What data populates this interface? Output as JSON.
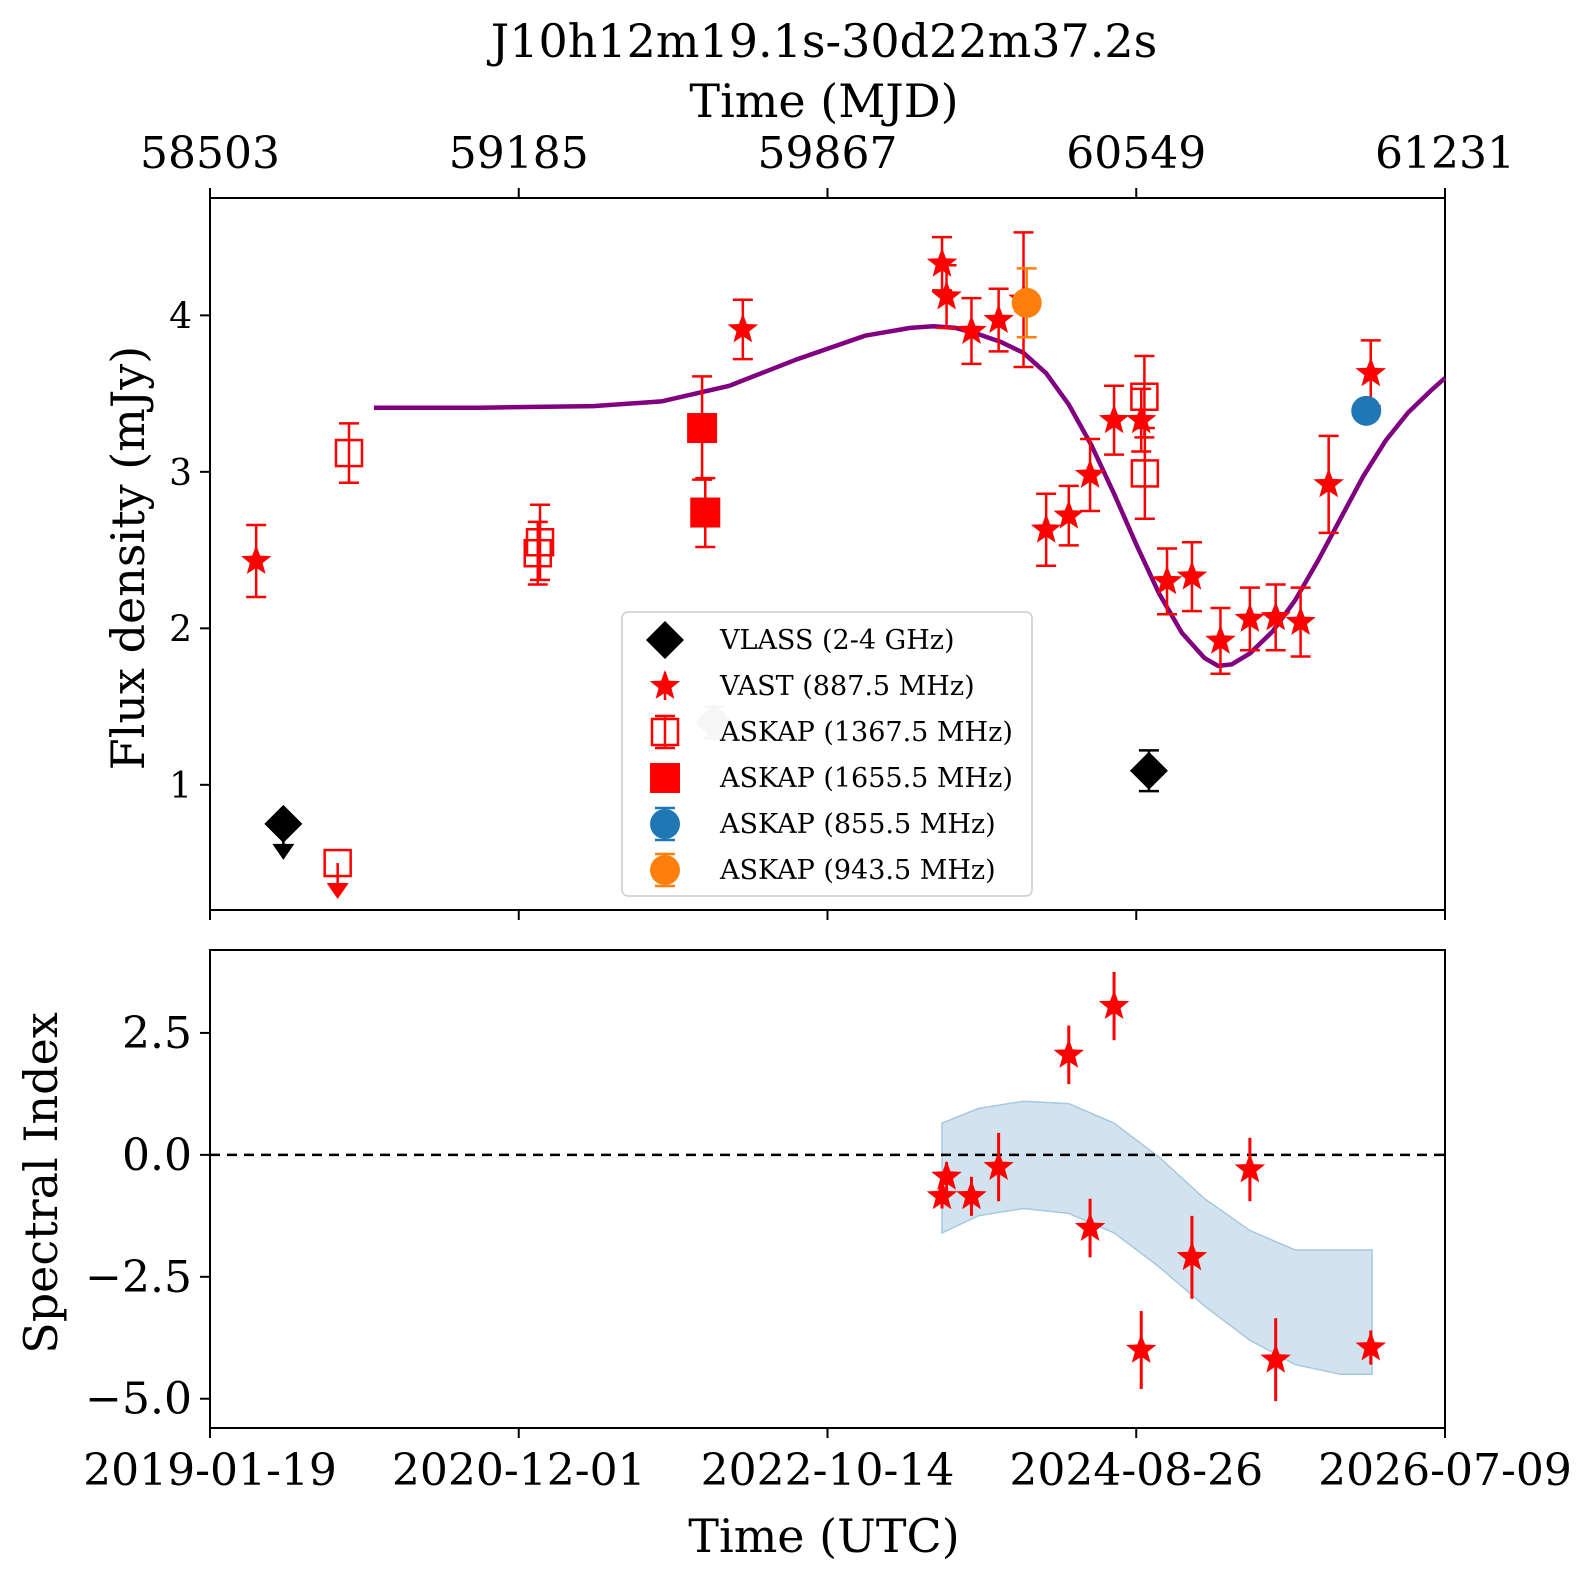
{
  "title": "J10h12m19.1s-30d22m37.2s",
  "colors": {
    "vlass": "#000000",
    "vast": "#ff0000",
    "askap_1367": "#ff0000",
    "askap_1655": "#ff0000",
    "askap_855": "#1f77b4",
    "askap_943": "#ff7f0e",
    "model": "#800080",
    "band": "#a6c8e0",
    "vlass_epoch1": "#c0c0c0"
  },
  "chart_data": [
    {
      "type": "scatter",
      "panel": "flux_density",
      "xlabel": "Time (UTC)",
      "ylabel": "Flux density (mJy)",
      "top_xlabel": "Time (MJD)",
      "top_ticks": [
        "58503",
        "59185",
        "59867",
        "60549",
        "61231"
      ],
      "x_tick_labels": [
        "2019-01-19",
        "2020-12-01",
        "2022-10-14",
        "2024-08-26",
        "2026-07-09"
      ],
      "xlim_mjd": [
        58503,
        61231
      ],
      "ylim": [
        0.2,
        4.75
      ],
      "y_ticks": [
        "1",
        "2",
        "3",
        "4"
      ],
      "grid": false,
      "legend_placement": "center",
      "legend": [
        {
          "label": "VLASS (2-4 GHz)",
          "marker": "diamond",
          "color": "#000000"
        },
        {
          "label": "VAST (887.5 MHz)",
          "marker": "star",
          "color": "#ff0000"
        },
        {
          "label": "ASKAP (1367.5 MHz)",
          "marker": "open-square",
          "color": "#ff0000"
        },
        {
          "label": "ASKAP (1655.5 MHz)",
          "marker": "square",
          "color": "#ff0000"
        },
        {
          "label": "ASKAP (855.5 MHz)",
          "marker": "circle",
          "color": "#1f77b4"
        },
        {
          "label": "ASKAP (943.5 MHz)",
          "marker": "circle",
          "color": "#ff7f0e"
        }
      ],
      "series": [
        {
          "name": "VLASS (2-4 GHz)",
          "marker": "diamond",
          "points": [
            {
              "x": 58665,
              "y": 0.75,
              "upper_limit": true
            },
            {
              "x": 60577,
              "y": 1.09,
              "err": 0.13
            }
          ],
          "extra_points": [
            {
              "x": 59617,
              "y": 1.4,
              "err": 0.1,
              "color": "#c0c0c0"
            }
          ]
        },
        {
          "name": "VAST (887.5 MHz)",
          "marker": "star",
          "points": [
            {
              "x": 58605,
              "y": 2.43,
              "err": 0.23
            },
            {
              "x": 59680,
              "y": 3.91,
              "err": 0.19
            },
            {
              "x": 60120,
              "y": 4.33,
              "err": 0.17
            },
            {
              "x": 60130,
              "y": 4.12,
              "err": 0.2
            },
            {
              "x": 60185,
              "y": 3.9,
              "err": 0.21
            },
            {
              "x": 60245,
              "y": 3.97,
              "err": 0.2
            },
            {
              "x": 60300,
              "y": 4.1,
              "err": 0.43
            },
            {
              "x": 60350,
              "y": 2.63,
              "err": 0.23
            },
            {
              "x": 60400,
              "y": 2.72,
              "err": 0.19
            },
            {
              "x": 60447,
              "y": 2.98,
              "err": 0.23
            },
            {
              "x": 60500,
              "y": 3.33,
              "err": 0.22
            },
            {
              "x": 60560,
              "y": 3.33,
              "err": 0.2
            },
            {
              "x": 60617,
              "y": 2.3,
              "err": 0.21
            },
            {
              "x": 60672,
              "y": 2.33,
              "err": 0.22
            },
            {
              "x": 60735,
              "y": 1.92,
              "err": 0.21
            },
            {
              "x": 60800,
              "y": 2.06,
              "err": 0.2
            },
            {
              "x": 60857,
              "y": 2.07,
              "err": 0.21
            },
            {
              "x": 60912,
              "y": 2.04,
              "err": 0.22
            },
            {
              "x": 60974,
              "y": 2.92,
              "err": 0.31
            },
            {
              "x": 61067,
              "y": 3.63,
              "err": 0.21
            }
          ]
        },
        {
          "name": "ASKAP (1367.5 MHz)",
          "marker": "open-square",
          "points": [
            {
              "x": 58785,
              "y": 0.5,
              "upper_limit": true
            },
            {
              "x": 58810,
              "y": 3.12,
              "err": 0.19
            },
            {
              "x": 59227,
              "y": 2.48,
              "err": 0.2
            },
            {
              "x": 59232,
              "y": 2.55,
              "err": 0.24
            },
            {
              "x": 60567,
              "y": 3.48,
              "err": 0.26
            },
            {
              "x": 60568,
              "y": 2.99,
              "err": 0.29
            }
          ]
        },
        {
          "name": "ASKAP (1655.5 MHz)",
          "marker": "square",
          "points": [
            {
              "x": 59590,
              "y": 3.28,
              "err": 0.33
            },
            {
              "x": 59597,
              "y": 2.74,
              "err": 0.22
            }
          ]
        },
        {
          "name": "ASKAP (855.5 MHz)",
          "marker": "circle",
          "points": [
            {
              "x": 61057,
              "y": 3.39,
              "err": 0.04
            }
          ]
        },
        {
          "name": "ASKAP (943.5 MHz)",
          "marker": "circle",
          "points": [
            {
              "x": 60307,
              "y": 4.08,
              "err": 0.22
            }
          ]
        }
      ],
      "model_curve": {
        "x": [
          58865,
          59100,
          59350,
          59500,
          59650,
          59800,
          59950,
          60050,
          60100,
          60150,
          60200,
          60250,
          60300,
          60350,
          60400,
          60450,
          60500,
          60550,
          60600,
          60650,
          60700,
          60730,
          60760,
          60800,
          60850,
          60900,
          60950,
          61000,
          61050,
          61100,
          61150,
          61200,
          61231
        ],
        "y": [
          3.41,
          3.41,
          3.42,
          3.45,
          3.55,
          3.72,
          3.87,
          3.92,
          3.93,
          3.92,
          3.88,
          3.83,
          3.76,
          3.63,
          3.43,
          3.17,
          2.86,
          2.53,
          2.22,
          1.97,
          1.81,
          1.76,
          1.77,
          1.84,
          1.98,
          2.18,
          2.43,
          2.7,
          2.97,
          3.2,
          3.38,
          3.52,
          3.6
        ]
      }
    },
    {
      "type": "scatter",
      "panel": "spectral_index",
      "xlabel": "Time (UTC)",
      "ylabel": "Spectral Index",
      "x_tick_labels": [
        "2019-01-19",
        "2020-12-01",
        "2022-10-14",
        "2024-08-26",
        "2026-07-09"
      ],
      "xlim_mjd": [
        58503,
        61231
      ],
      "ylim": [
        -5.6,
        4.2
      ],
      "y_ticks": [
        "2.5",
        "0.0",
        "−2.5",
        "−5.0"
      ],
      "reference_line": {
        "y": 0.0,
        "style": "dashed"
      },
      "series": [
        {
          "name": "VAST (887.5 MHz)",
          "marker": "star",
          "points": [
            {
              "x": 60120,
              "y": -0.85,
              "err": 0.25
            },
            {
              "x": 60130,
              "y": -0.45,
              "err": 0.3
            },
            {
              "x": 60185,
              "y": -0.85,
              "err": 0.4
            },
            {
              "x": 60245,
              "y": -0.25,
              "err": 0.7
            },
            {
              "x": 60400,
              "y": 2.05,
              "err": 0.6
            },
            {
              "x": 60447,
              "y": -1.5,
              "err": 0.6
            },
            {
              "x": 60500,
              "y": 3.05,
              "err": 0.7
            },
            {
              "x": 60560,
              "y": -4.0,
              "err": 0.8
            },
            {
              "x": 60672,
              "y": -2.1,
              "err": 0.85
            },
            {
              "x": 60800,
              "y": -0.3,
              "err": 0.65
            },
            {
              "x": 60857,
              "y": -4.2,
              "err": 0.85
            },
            {
              "x": 61067,
              "y": -3.95,
              "err": 0.35
            }
          ]
        }
      ],
      "band": {
        "x": [
          60120,
          60200,
          60300,
          60400,
          60500,
          60600,
          60700,
          60800,
          60900,
          61000,
          61070
        ],
        "upper": [
          0.65,
          0.95,
          1.1,
          1.05,
          0.65,
          -0.05,
          -0.9,
          -1.55,
          -1.95,
          -1.95,
          -1.95
        ],
        "lower": [
          -1.6,
          -1.25,
          -1.1,
          -1.2,
          -1.6,
          -2.3,
          -3.1,
          -3.8,
          -4.3,
          -4.5,
          -4.5
        ]
      }
    }
  ]
}
